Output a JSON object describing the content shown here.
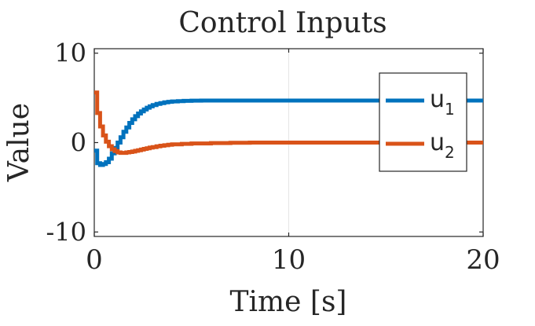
{
  "chart_data": {
    "type": "line",
    "title": "Control Inputs",
    "xlabel": "Time [s]",
    "ylabel": "Value",
    "xlim": [
      0,
      20
    ],
    "ylim": [
      -10.5,
      10.5
    ],
    "xticks": [
      0,
      10,
      20
    ],
    "xtick_labels": [
      "0",
      "10",
      "20"
    ],
    "yticks": [
      -10,
      0,
      10
    ],
    "ytick_labels": [
      "-10",
      "0",
      "10"
    ],
    "grid": "x-only",
    "legend_placement": "right",
    "series": [
      {
        "name": "u",
        "subscript": "1",
        "color": "#0072BD",
        "step": true,
        "x": [
          0,
          0.15,
          0.3,
          0.45,
          0.6,
          0.75,
          0.9,
          1.05,
          1.2,
          1.35,
          1.5,
          1.65,
          1.8,
          1.95,
          2.1,
          2.25,
          2.4,
          2.55,
          2.7,
          2.85,
          3.0,
          3.2,
          3.4,
          3.6,
          3.8,
          4.0,
          4.3,
          4.6,
          5.0,
          5.5,
          6.0,
          7.0,
          8.0,
          10.0,
          12.0,
          15.0,
          20.0
        ],
        "y": [
          -0.9,
          -2.3,
          -2.5,
          -2.4,
          -2.2,
          -1.8,
          -1.2,
          -0.6,
          0.0,
          0.6,
          1.2,
          1.7,
          2.2,
          2.6,
          2.95,
          3.25,
          3.5,
          3.7,
          3.9,
          4.05,
          4.2,
          4.32,
          4.42,
          4.5,
          4.56,
          4.6,
          4.64,
          4.67,
          4.69,
          4.7,
          4.7,
          4.7,
          4.7,
          4.7,
          4.7,
          4.7,
          4.7
        ]
      },
      {
        "name": "u",
        "subscript": "2",
        "color": "#D95319",
        "step": true,
        "x": [
          0,
          0.15,
          0.3,
          0.45,
          0.6,
          0.75,
          0.9,
          1.05,
          1.2,
          1.35,
          1.5,
          1.65,
          1.8,
          1.95,
          2.1,
          2.25,
          2.4,
          2.55,
          2.7,
          2.85,
          3.0,
          3.2,
          3.4,
          3.6,
          3.8,
          4.0,
          4.5,
          5.0,
          6.0,
          7.0,
          8.0,
          10.0,
          15.0,
          20.0
        ],
        "y": [
          5.6,
          3.3,
          1.8,
          0.8,
          0.1,
          -0.4,
          -0.75,
          -0.95,
          -1.1,
          -1.15,
          -1.15,
          -1.1,
          -1.05,
          -1.0,
          -0.92,
          -0.85,
          -0.78,
          -0.7,
          -0.63,
          -0.56,
          -0.5,
          -0.42,
          -0.35,
          -0.3,
          -0.25,
          -0.2,
          -0.14,
          -0.1,
          -0.05,
          -0.03,
          0.0,
          0.0,
          0.0,
          0.0
        ]
      }
    ]
  }
}
